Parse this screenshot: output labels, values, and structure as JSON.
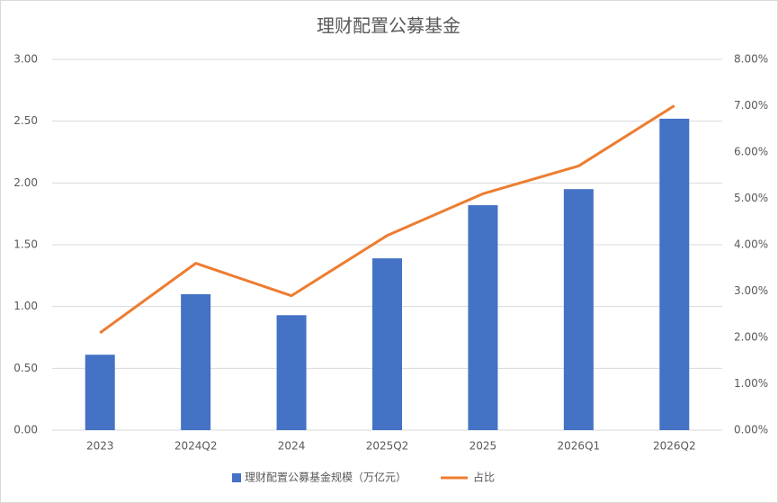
{
  "chart_data": {
    "type": "bar",
    "title": "理财配置公募基金",
    "categories": [
      "2023",
      "2024Q2",
      "2024",
      "2025Q2",
      "2025",
      "2026Q1",
      "2026Q2"
    ],
    "series": [
      {
        "name": "理财配置公募基金规模（万亿元）",
        "type": "bar",
        "color": "#4472c4",
        "values": [
          0.61,
          1.1,
          0.93,
          1.39,
          1.82,
          1.95,
          2.52
        ]
      },
      {
        "name": "占比",
        "type": "line",
        "axis": "y2",
        "color": "#ed7d31",
        "values": [
          2.1,
          3.6,
          2.9,
          4.2,
          5.1,
          5.7,
          7.0
        ]
      }
    ],
    "ylim": [
      0,
      3
    ],
    "yticks": [
      {
        "value": 0,
        "label": "0.00"
      },
      {
        "value": 0.5,
        "label": "0.50"
      },
      {
        "value": 1,
        "label": "1.00"
      },
      {
        "value": 1.5,
        "label": "1.50"
      },
      {
        "value": 2,
        "label": "2.00"
      },
      {
        "value": 2.5,
        "label": "2.50"
      },
      {
        "value": 3,
        "label": "3.00"
      }
    ],
    "y2lim": [
      0,
      8
    ],
    "y2ticks": [
      {
        "value": 0,
        "label": "0.00%"
      },
      {
        "value": 1,
        "label": "1.00%"
      },
      {
        "value": 2,
        "label": "2.00%"
      },
      {
        "value": 3,
        "label": "3.00%"
      },
      {
        "value": 4,
        "label": "4.00%"
      },
      {
        "value": 5,
        "label": "5.00%"
      },
      {
        "value": 6,
        "label": "6.00%"
      },
      {
        "value": 7,
        "label": "7.00%"
      },
      {
        "value": 8,
        "label": "8.00%"
      }
    ],
    "grid": true,
    "legend": "bottom"
  }
}
